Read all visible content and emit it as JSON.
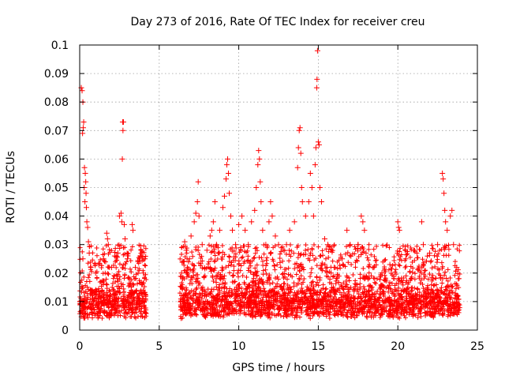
{
  "chart_data": {
    "type": "scatter",
    "title": "Day 273 of 2016, Rate Of TEC Index for receiver creu",
    "xlabel": "GPS time / hours",
    "ylabel": "ROTI / TECUs",
    "xlim": [
      0,
      25
    ],
    "ylim": [
      0,
      0.1
    ],
    "grid": true,
    "marker": "+",
    "color": "#ff0000",
    "x_ticks": [
      0,
      5,
      10,
      15,
      20,
      25
    ],
    "x_tick_labels": [
      "0",
      "5",
      "10",
      "15",
      "20",
      "25"
    ],
    "y_ticks": [
      0,
      0.01,
      0.02,
      0.03,
      0.04,
      0.05,
      0.06,
      0.07,
      0.08,
      0.09,
      0.1
    ],
    "y_tick_labels": [
      "0",
      "0.01",
      "0.02",
      "0.03",
      "0.04",
      "0.05",
      "0.06",
      "0.07",
      "0.08",
      "0.09",
      "0.1"
    ],
    "data_gap_hours": [
      4.2,
      6.3
    ],
    "series": [
      {
        "name": "ROTI",
        "points": [
          [
            0.1,
            0.085
          ],
          [
            0.15,
            0.084
          ],
          [
            0.2,
            0.08
          ],
          [
            0.25,
            0.073
          ],
          [
            0.22,
            0.071
          ],
          [
            0.18,
            0.069
          ],
          [
            0.3,
            0.057
          ],
          [
            0.35,
            0.055
          ],
          [
            0.38,
            0.052
          ],
          [
            0.28,
            0.05
          ],
          [
            0.4,
            0.048
          ],
          [
            0.33,
            0.045
          ],
          [
            0.42,
            0.043
          ],
          [
            0.45,
            0.038
          ],
          [
            0.5,
            0.036
          ],
          [
            0.55,
            0.031
          ],
          [
            0.6,
            0.027
          ],
          [
            0.2,
            0.025
          ],
          [
            0.7,
            0.022
          ],
          [
            1.0,
            0.02
          ],
          [
            1.2,
            0.023
          ],
          [
            1.5,
            0.025
          ],
          [
            1.7,
            0.034
          ],
          [
            1.75,
            0.032
          ],
          [
            1.8,
            0.03
          ],
          [
            2.0,
            0.022
          ],
          [
            2.2,
            0.026
          ],
          [
            2.4,
            0.027
          ],
          [
            2.5,
            0.04
          ],
          [
            2.6,
            0.041
          ],
          [
            2.65,
            0.038
          ],
          [
            2.7,
            0.073
          ],
          [
            2.75,
            0.073
          ],
          [
            2.72,
            0.07
          ],
          [
            2.68,
            0.06
          ],
          [
            2.8,
            0.037
          ],
          [
            2.85,
            0.032
          ],
          [
            3.0,
            0.025
          ],
          [
            3.3,
            0.037
          ],
          [
            3.35,
            0.035
          ],
          [
            3.5,
            0.022
          ],
          [
            3.8,
            0.026
          ],
          [
            4.0,
            0.02
          ],
          [
            4.1,
            0.025
          ],
          [
            6.4,
            0.02
          ],
          [
            6.5,
            0.024
          ],
          [
            6.6,
            0.031
          ],
          [
            6.7,
            0.028
          ],
          [
            6.9,
            0.025
          ],
          [
            7.0,
            0.033
          ],
          [
            7.2,
            0.038
          ],
          [
            7.3,
            0.041
          ],
          [
            7.4,
            0.045
          ],
          [
            7.45,
            0.052
          ],
          [
            7.5,
            0.04
          ],
          [
            7.7,
            0.03
          ],
          [
            8.0,
            0.028
          ],
          [
            8.2,
            0.033
          ],
          [
            8.3,
            0.035
          ],
          [
            8.4,
            0.038
          ],
          [
            8.5,
            0.045
          ],
          [
            8.6,
            0.03
          ],
          [
            8.8,
            0.035
          ],
          [
            9.0,
            0.043
          ],
          [
            9.1,
            0.047
          ],
          [
            9.2,
            0.053
          ],
          [
            9.25,
            0.058
          ],
          [
            9.3,
            0.06
          ],
          [
            9.35,
            0.055
          ],
          [
            9.4,
            0.048
          ],
          [
            9.5,
            0.04
          ],
          [
            9.6,
            0.035
          ],
          [
            9.8,
            0.03
          ],
          [
            10.0,
            0.037
          ],
          [
            10.2,
            0.04
          ],
          [
            10.4,
            0.035
          ],
          [
            10.6,
            0.03
          ],
          [
            10.8,
            0.038
          ],
          [
            11.0,
            0.042
          ],
          [
            11.1,
            0.05
          ],
          [
            11.2,
            0.058
          ],
          [
            11.25,
            0.063
          ],
          [
            11.3,
            0.06
          ],
          [
            11.35,
            0.052
          ],
          [
            11.4,
            0.045
          ],
          [
            11.5,
            0.035
          ],
          [
            11.7,
            0.03
          ],
          [
            11.9,
            0.038
          ],
          [
            12.0,
            0.045
          ],
          [
            12.1,
            0.04
          ],
          [
            12.3,
            0.033
          ],
          [
            12.5,
            0.03
          ],
          [
            12.8,
            0.028
          ],
          [
            13.0,
            0.03
          ],
          [
            13.2,
            0.035
          ],
          [
            13.5,
            0.038
          ],
          [
            13.7,
            0.057
          ],
          [
            13.75,
            0.064
          ],
          [
            13.8,
            0.07
          ],
          [
            13.85,
            0.071
          ],
          [
            13.9,
            0.062
          ],
          [
            13.95,
            0.05
          ],
          [
            14.0,
            0.045
          ],
          [
            14.2,
            0.04
          ],
          [
            14.4,
            0.045
          ],
          [
            14.5,
            0.055
          ],
          [
            14.6,
            0.05
          ],
          [
            14.7,
            0.04
          ],
          [
            14.8,
            0.058
          ],
          [
            14.85,
            0.064
          ],
          [
            14.9,
            0.085
          ],
          [
            14.92,
            0.088
          ],
          [
            14.95,
            0.098
          ],
          [
            15.0,
            0.066
          ],
          [
            15.05,
            0.065
          ],
          [
            15.1,
            0.05
          ],
          [
            15.2,
            0.045
          ],
          [
            15.4,
            0.032
          ],
          [
            15.6,
            0.03
          ],
          [
            15.8,
            0.02
          ],
          [
            16.0,
            0.022
          ],
          [
            16.5,
            0.025
          ],
          [
            16.8,
            0.035
          ],
          [
            17.0,
            0.03
          ],
          [
            17.5,
            0.03
          ],
          [
            17.7,
            0.04
          ],
          [
            17.8,
            0.038
          ],
          [
            17.9,
            0.035
          ],
          [
            18.0,
            0.027
          ],
          [
            18.5,
            0.022
          ],
          [
            19.0,
            0.02
          ],
          [
            19.5,
            0.023
          ],
          [
            20.0,
            0.038
          ],
          [
            20.05,
            0.036
          ],
          [
            20.1,
            0.035
          ],
          [
            20.5,
            0.025
          ],
          [
            21.0,
            0.028
          ],
          [
            21.5,
            0.038
          ],
          [
            21.6,
            0.03
          ],
          [
            22.0,
            0.027
          ],
          [
            22.5,
            0.03
          ],
          [
            22.8,
            0.055
          ],
          [
            22.85,
            0.053
          ],
          [
            22.9,
            0.048
          ],
          [
            22.95,
            0.042
          ],
          [
            23.0,
            0.038
          ],
          [
            23.1,
            0.035
          ],
          [
            23.3,
            0.04
          ],
          [
            23.4,
            0.042
          ],
          [
            23.5,
            0.03
          ],
          [
            23.7,
            0.022
          ],
          [
            23.8,
            0.018
          ]
        ],
        "band": {
          "segments": [
            [
              0.0,
              4.2
            ],
            [
              6.3,
              23.9
            ]
          ],
          "y_range": [
            0.004,
            0.02
          ]
        }
      }
    ]
  }
}
